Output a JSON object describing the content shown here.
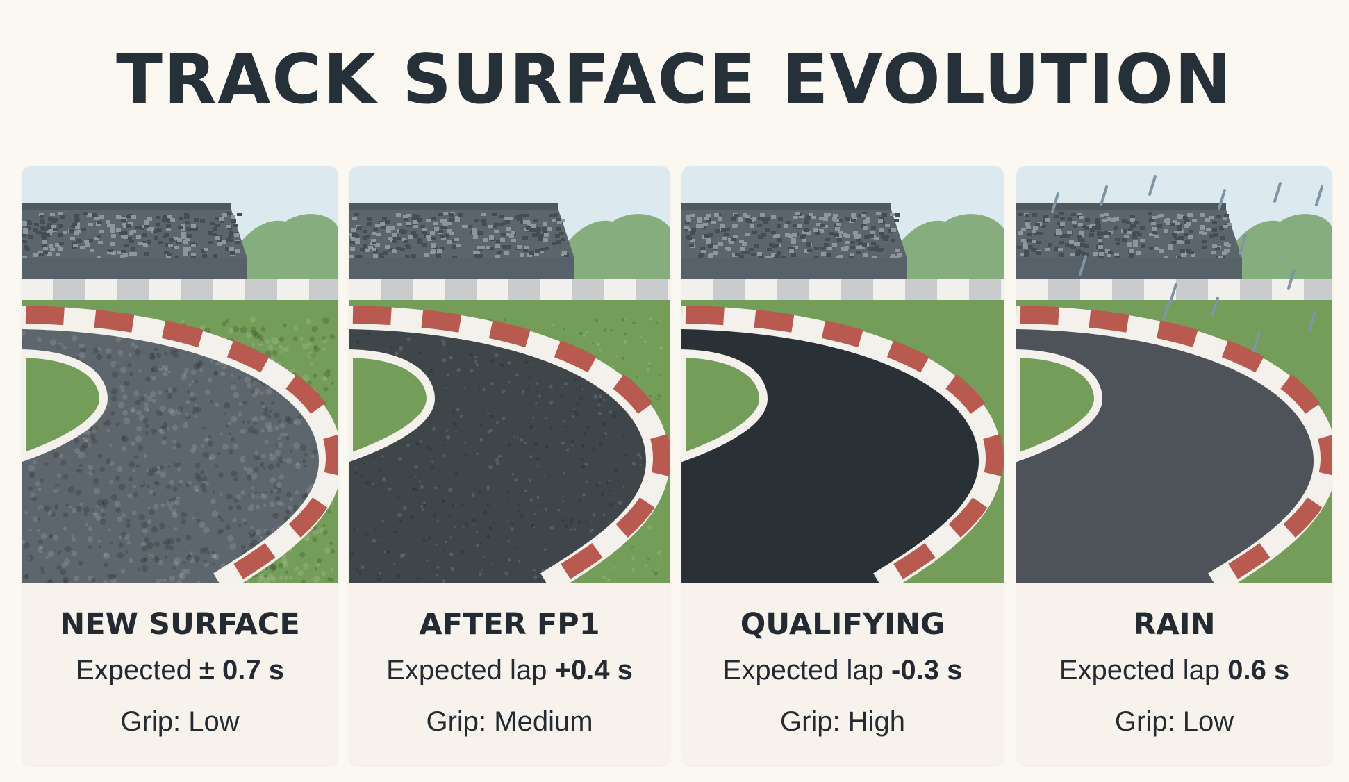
{
  "title": "TRACK SURFACE EVOLUTION",
  "panels": [
    {
      "name": "NEW SURFACE",
      "lap_prefix": "Expected ",
      "lap_value": "± 0.7 s",
      "grip_label": "Grip: ",
      "grip_value": "Low",
      "asphalt_color": "#5d666c",
      "texture": "coarse",
      "rain": false
    },
    {
      "name": "AFTER FP1",
      "lap_prefix": "Expected lap ",
      "lap_value": "+0.4 s",
      "grip_label": "Grip: ",
      "grip_value": "Medium",
      "asphalt_color": "#3f4649",
      "texture": "fine",
      "rain": false
    },
    {
      "name": "QUALIFYING",
      "lap_prefix": "Expected lap ",
      "lap_value": "-0.3 s",
      "grip_label": "Grip: ",
      "grip_value": "High",
      "asphalt_color": "#2a3136",
      "texture": "none",
      "rain": false
    },
    {
      "name": "RAIN",
      "lap_prefix": "Expected lap ",
      "lap_value": "0.6 s",
      "grip_label": "Grip: ",
      "grip_value": "Low",
      "asphalt_color": "#4d5358",
      "texture": "none",
      "rain": true
    }
  ],
  "colors": {
    "sky": "#dce9ee",
    "grass": "#739d59",
    "trees": "#86ad7e",
    "curb_red": "#b85a4f",
    "curb_white": "#f4f1ec",
    "stand": "#5b656c"
  }
}
